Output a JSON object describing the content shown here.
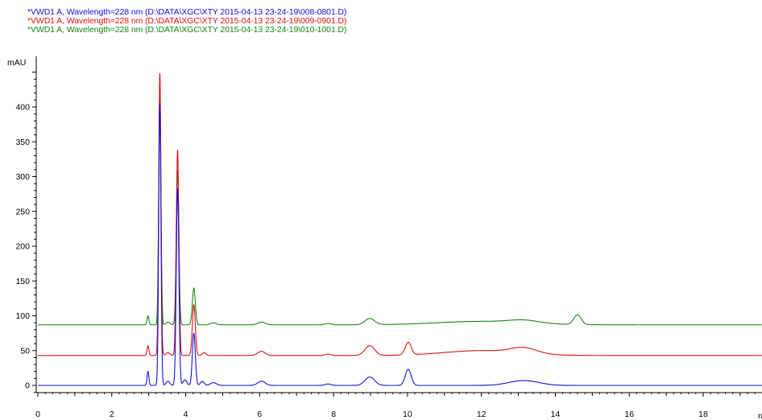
{
  "colors": {
    "axis": "#000000",
    "background": "#ffffff"
  },
  "legend": [
    {
      "text": "*VWD1 A, Wavelength=228 nm (D:\\DATA\\XGC\\XTY 2015-04-13 23-24-19\\008-0801.D)",
      "color": "#1111dd"
    },
    {
      "text": "*VWD1 A, Wavelength=228 nm (D:\\DATA\\XGC\\XTY 2015-04-13 23-24-19\\009-0901.D)",
      "color": "#dd1111"
    },
    {
      "text": "*VWD1 A, Wavelength=228 nm (D:\\DATA\\XGC\\XTY 2015-04-13 23-24-19\\010-1001.D)",
      "color": "#118811"
    }
  ],
  "chart_data": {
    "type": "line",
    "ylabel": "mAU",
    "xlabel": "n",
    "xlim": [
      0,
      20
    ],
    "ylim": [
      -15,
      470
    ],
    "x_ticks": [
      "0",
      "2",
      "4",
      "6",
      "8",
      "10",
      "12",
      "14",
      "16",
      "18"
    ],
    "y_ticks": [
      "0",
      "50",
      "100",
      "150",
      "200",
      "250",
      "300",
      "350",
      "400"
    ],
    "grid": false,
    "series": [
      {
        "name": "*VWD1 A, Wavelength=228 nm (D:\\DATA\\XGC\\XTY 2015-04-13 23-24-19\\008-0801.D)",
        "color": "#1111dd",
        "baseline": 0,
        "peaks": [
          {
            "t": 2.98,
            "h": 20,
            "w": 0.025
          },
          {
            "t": 3.3,
            "h": 405,
            "w": 0.03
          },
          {
            "t": 3.52,
            "h": 6,
            "w": 0.05
          },
          {
            "t": 3.78,
            "h": 283,
            "w": 0.035
          },
          {
            "t": 3.98,
            "h": 8,
            "w": 0.05
          },
          {
            "t": 4.22,
            "h": 75,
            "w": 0.04
          },
          {
            "t": 4.45,
            "h": 6,
            "w": 0.05
          },
          {
            "t": 4.75,
            "h": 4,
            "w": 0.08
          },
          {
            "t": 6.05,
            "h": 6,
            "w": 0.1
          },
          {
            "t": 7.85,
            "h": 2,
            "w": 0.08
          },
          {
            "t": 8.98,
            "h": 12,
            "w": 0.13
          },
          {
            "t": 10.02,
            "h": 23,
            "w": 0.08
          },
          {
            "t": 13.15,
            "h": 7,
            "w": 0.4
          }
        ]
      },
      {
        "name": "*VWD1 A, Wavelength=228 nm (D:\\DATA\\XGC\\XTY 2015-04-13 23-24-19\\009-0901.D)",
        "color": "#dd1111",
        "baseline": 43,
        "peaks": [
          {
            "t": 2.98,
            "h": 14,
            "w": 0.025
          },
          {
            "t": 3.3,
            "h": 405,
            "w": 0.03
          },
          {
            "t": 3.52,
            "h": 4,
            "w": 0.05
          },
          {
            "t": 3.78,
            "h": 295,
            "w": 0.035
          },
          {
            "t": 4.22,
            "h": 73,
            "w": 0.04
          },
          {
            "t": 4.5,
            "h": 4,
            "w": 0.05
          },
          {
            "t": 6.05,
            "h": 6,
            "w": 0.1
          },
          {
            "t": 7.85,
            "h": 2,
            "w": 0.08
          },
          {
            "t": 8.98,
            "h": 14,
            "w": 0.13
          },
          {
            "t": 10.02,
            "h": 18,
            "w": 0.08
          },
          {
            "t": 12.0,
            "h": 7,
            "w": 1.0
          },
          {
            "t": 13.15,
            "h": 8,
            "w": 0.35
          }
        ]
      },
      {
        "name": "*VWD1 A, Wavelength=228 nm (D:\\DATA\\XGC\\XTY 2015-04-13 23-24-19\\010-1001.D)",
        "color": "#118811",
        "baseline": 87,
        "peaks": [
          {
            "t": 2.98,
            "h": 13,
            "w": 0.025
          },
          {
            "t": 3.3,
            "h": 330,
            "w": 0.03
          },
          {
            "t": 3.52,
            "h": 4,
            "w": 0.05
          },
          {
            "t": 3.78,
            "h": 222,
            "w": 0.035
          },
          {
            "t": 4.22,
            "h": 53,
            "w": 0.04
          },
          {
            "t": 4.75,
            "h": 3,
            "w": 0.08
          },
          {
            "t": 6.05,
            "h": 4,
            "w": 0.1
          },
          {
            "t": 7.85,
            "h": 2,
            "w": 0.08
          },
          {
            "t": 8.98,
            "h": 9,
            "w": 0.13
          },
          {
            "t": 12.0,
            "h": 5,
            "w": 1.2
          },
          {
            "t": 13.15,
            "h": 4,
            "w": 0.4
          },
          {
            "t": 14.6,
            "h": 14,
            "w": 0.1
          }
        ]
      }
    ]
  }
}
